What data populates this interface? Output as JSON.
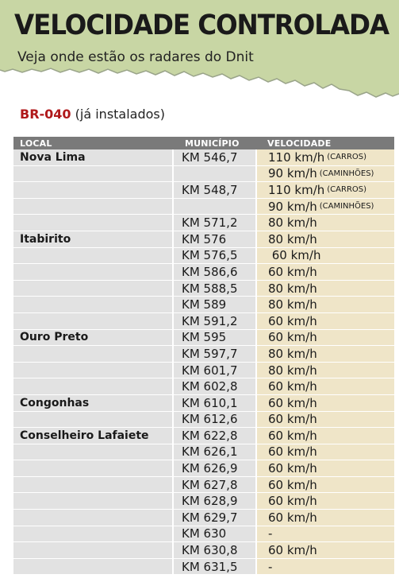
{
  "header": {
    "title": "VELOCIDADE CONTROLADA",
    "subtitle": "Veja onde estão os radares do Dnit"
  },
  "road": {
    "code": "BR-040",
    "note": "(já instalados)"
  },
  "colors": {
    "banner": "#c8d6a4",
    "road_code": "#b0191b",
    "header_row": "#7a7a7a",
    "gray_cell": "#e2e2e2",
    "speed_cell": "#efe5c8"
  },
  "table": {
    "headers": {
      "local": "LOCAL",
      "municipio": "MUNICÍPIO",
      "velocidade": "VELOCIDADE"
    },
    "rows": [
      {
        "local": "Nova Lima",
        "km": "KM 546,7",
        "speed": "110 km/h",
        "note": "(CARROS)"
      },
      {
        "local": "",
        "km": "",
        "speed": "90 km/h",
        "note": "(CAMINHÕES)"
      },
      {
        "local": "",
        "km": "KM 548,7",
        "speed": "110 km/h",
        "note": "(CARROS)"
      },
      {
        "local": "",
        "km": "",
        "speed": "90 km/h",
        "note": "(CAMINHÕES)"
      },
      {
        "local": "",
        "km": "KM 571,2",
        "speed": "80 km/h",
        "note": ""
      },
      {
        "local": "Itabirito",
        "km": "KM 576",
        "speed": "80 km/h",
        "note": ""
      },
      {
        "local": "",
        "km": "KM 576,5",
        "speed": " 60 km/h",
        "note": ""
      },
      {
        "local": "",
        "km": "KM 586,6",
        "speed": "60 km/h",
        "note": ""
      },
      {
        "local": "",
        "km": "KM 588,5",
        "speed": "80 km/h",
        "note": ""
      },
      {
        "local": "",
        "km": "KM 589",
        "speed": "80 km/h",
        "note": ""
      },
      {
        "local": "",
        "km": "KM 591,2",
        "speed": "60 km/h",
        "note": ""
      },
      {
        "local": "Ouro Preto",
        "km": "KM 595",
        "speed": "60 km/h",
        "note": ""
      },
      {
        "local": "",
        "km": "KM 597,7",
        "speed": "80 km/h",
        "note": ""
      },
      {
        "local": "",
        "km": "KM 601,7",
        "speed": "80 km/h",
        "note": ""
      },
      {
        "local": "",
        "km": "KM 602,8",
        "speed": "60 km/h",
        "note": ""
      },
      {
        "local": "Congonhas",
        "km": "KM 610,1",
        "speed": "60 km/h",
        "note": ""
      },
      {
        "local": "",
        "km": "KM 612,6",
        "speed": "60 km/h",
        "note": ""
      },
      {
        "local": "Conselheiro Lafaiete",
        "km": "KM 622,8",
        "speed": "60 km/h",
        "note": ""
      },
      {
        "local": "",
        "km": "KM 626,1",
        "speed": "60 km/h",
        "note": ""
      },
      {
        "local": "",
        "km": "KM 626,9",
        "speed": "60 km/h",
        "note": ""
      },
      {
        "local": "",
        "km": "KM 627,8",
        "speed": "60 km/h",
        "note": ""
      },
      {
        "local": "",
        "km": "KM 628,9",
        "speed": "60 km/h",
        "note": ""
      },
      {
        "local": "",
        "km": "KM 629,7",
        "speed": "60 km/h",
        "note": ""
      },
      {
        "local": "",
        "km": "KM 630",
        "speed": "-",
        "note": ""
      },
      {
        "local": "",
        "km": "KM 630,8",
        "speed": "60 km/h",
        "note": ""
      },
      {
        "local": "",
        "km": "KM 631,5",
        "speed": "-",
        "note": ""
      }
    ]
  }
}
